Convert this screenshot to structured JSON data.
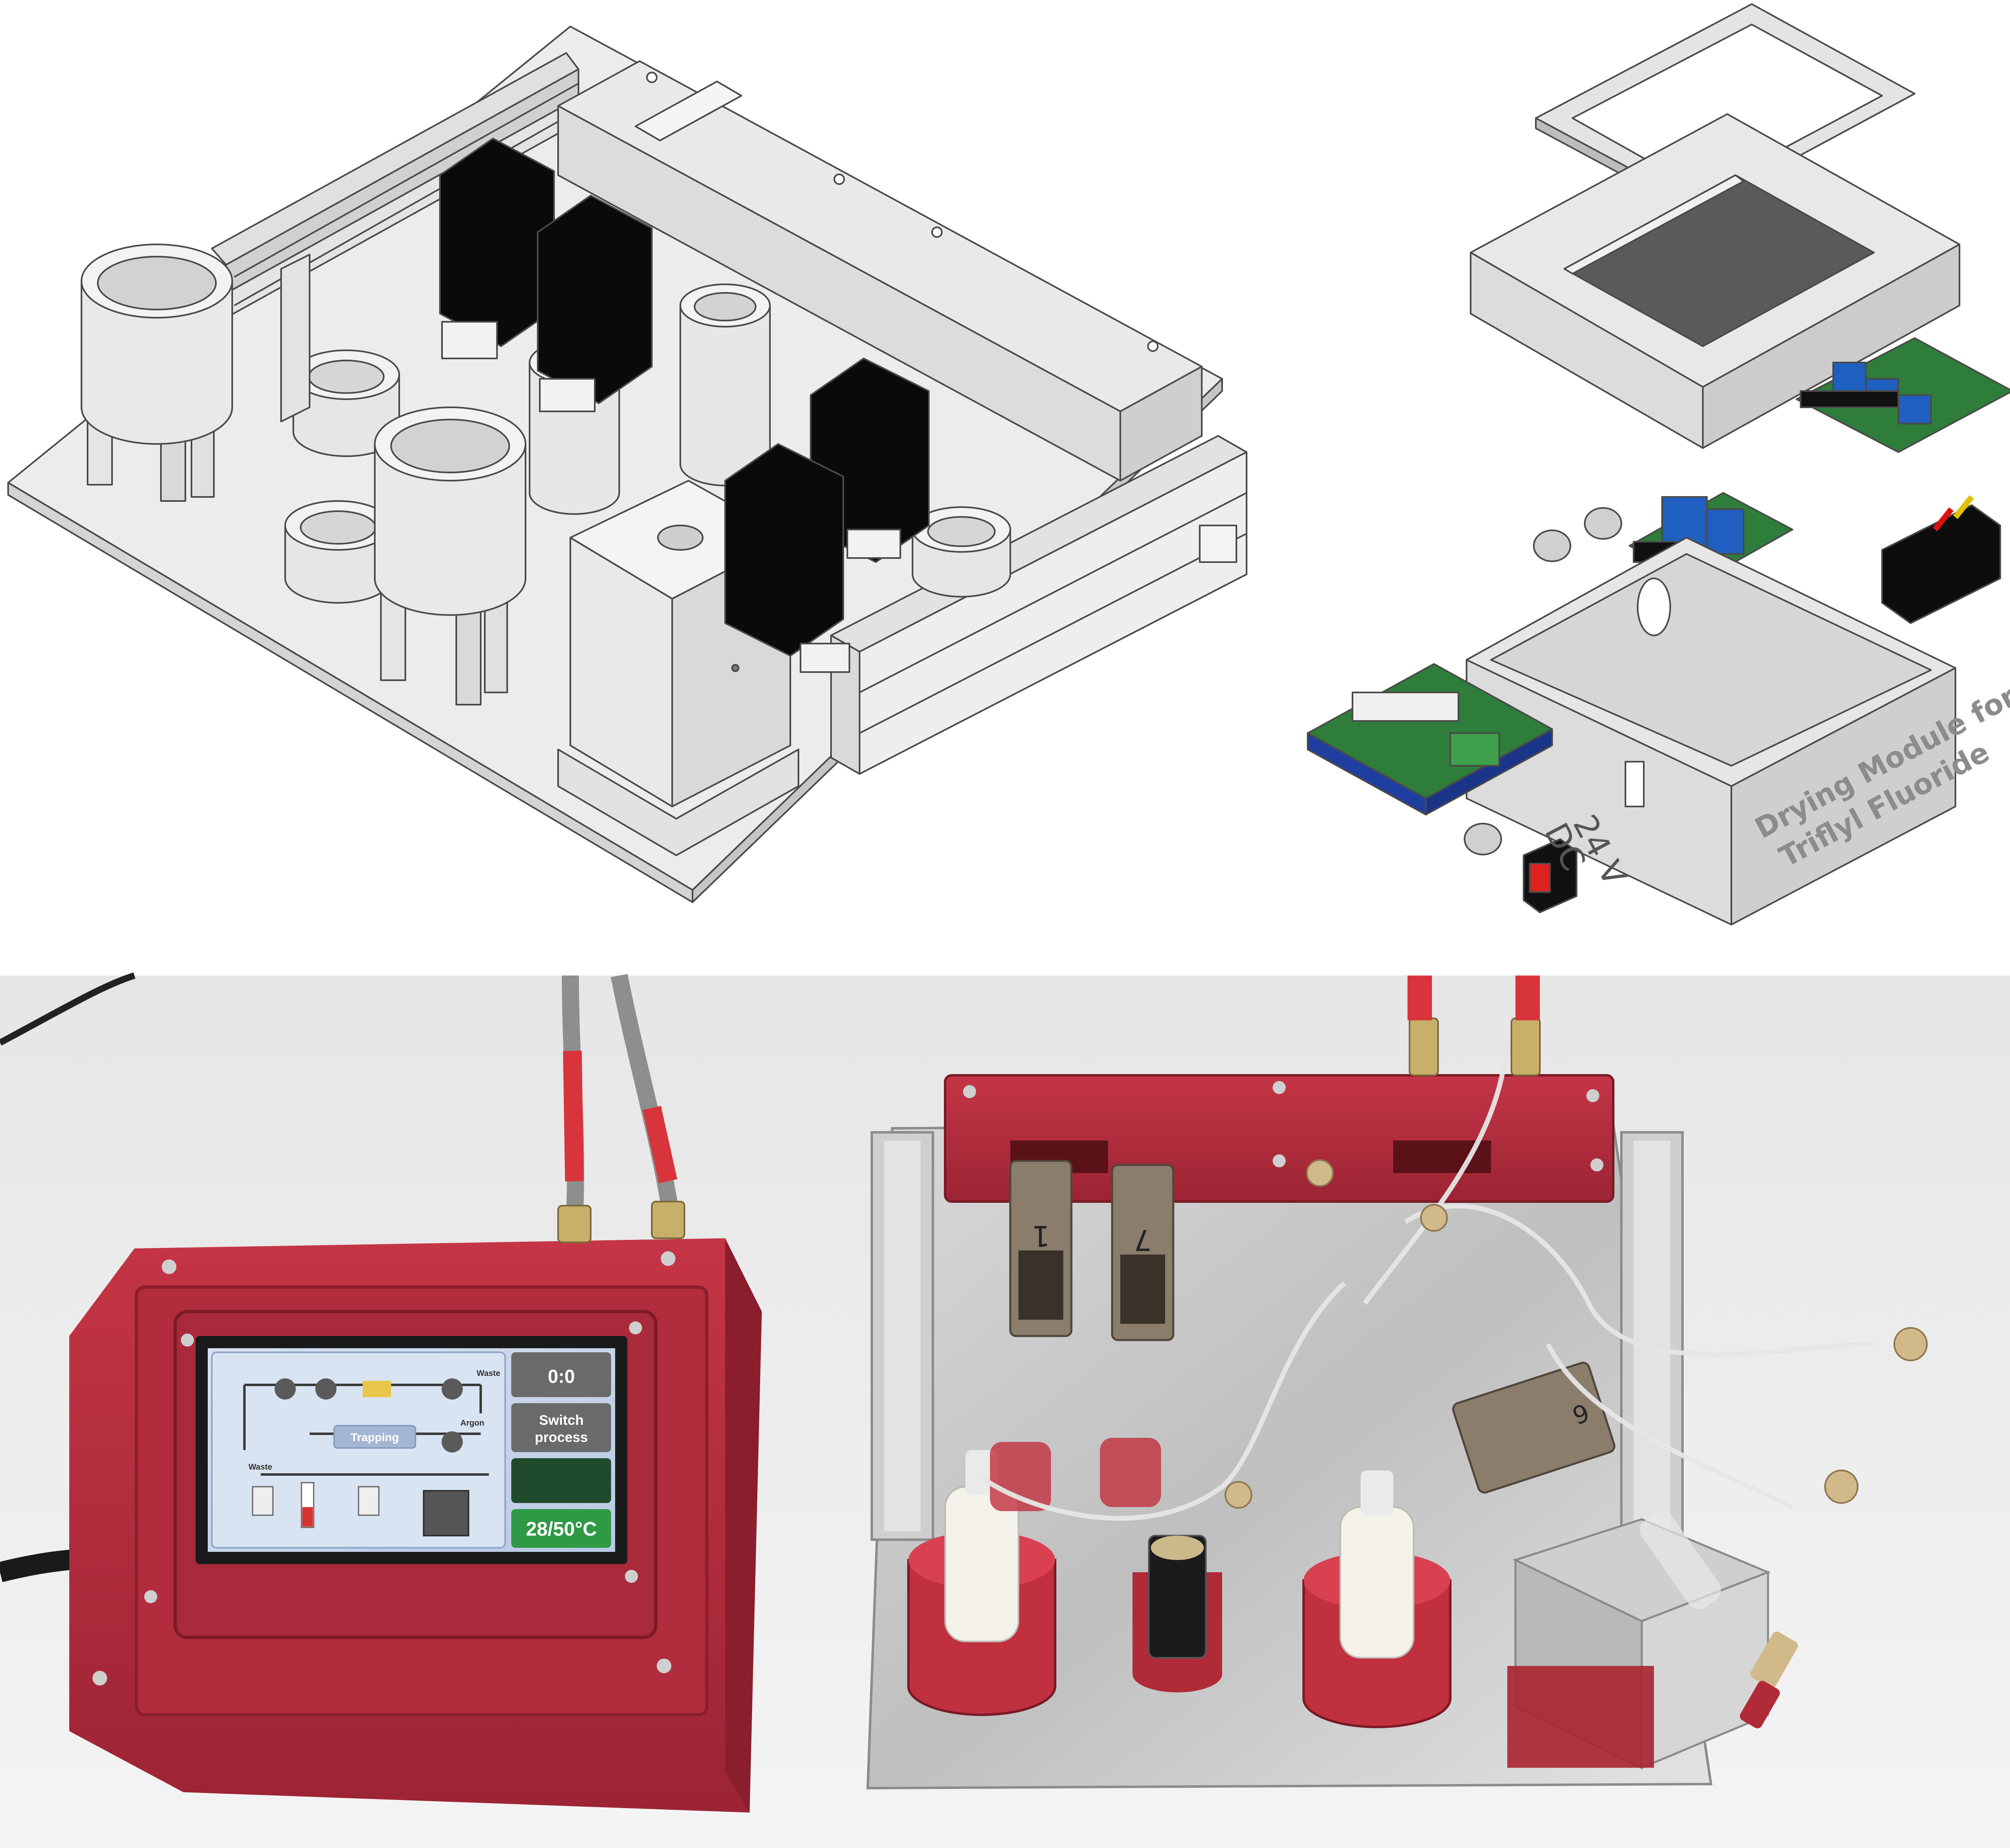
{
  "colors": {
    "cad_fill": "#e8e8e8",
    "cad_edge": "#4a4a4a",
    "valve_black": "#080808",
    "pcb_green": "#2e7d3a",
    "relay_blue": "#1f5fbf",
    "print_red": "#b3303f",
    "screen_bg": "#c7d5ea",
    "photo_bg": "#efefef"
  },
  "cad_panel_left": {
    "name": "cad-assembly-baseplate"
  },
  "cad_panel_right": {
    "housing_label_line1": "Drying Module for",
    "housing_label_line2": "Triflyl Fluoride",
    "power_label_line1": "24 V",
    "power_label_line2": "DC"
  },
  "photo_panel": {
    "screen": {
      "timer": "0:0",
      "switch_button_line1": "Switch",
      "switch_button_line2": "process",
      "temperature": "28/50°C",
      "process_box": "Trapping",
      "label_waste_top": "Waste",
      "label_argon": "Argon",
      "label_waste_left": "Waste"
    },
    "valve_labels": [
      "1",
      "7"
    ],
    "valve_label_right": "6"
  }
}
